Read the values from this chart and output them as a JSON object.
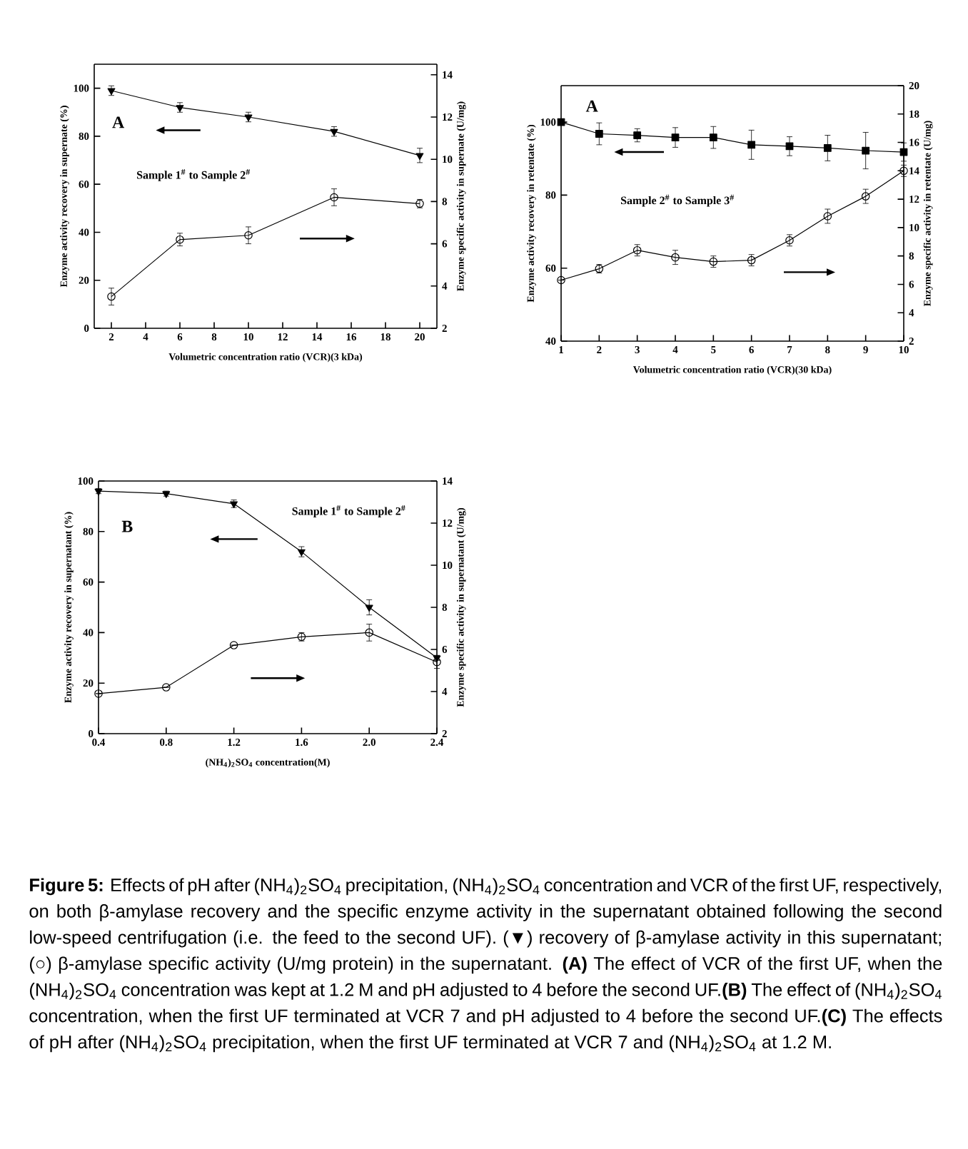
{
  "chart_data": [
    {
      "type": "line",
      "xlabel": "Volumetric concentration ratio (VCR)(3 kDa)",
      "ylabel": "Enzyme activity recovery in supernate (%)",
      "y2label": "Enzyme specific activity in supernate (U/mg)",
      "x": [
        2,
        6,
        10,
        15,
        20
      ],
      "series": [
        {
          "color": "#000000",
          "marker": "triangle",
          "values": [
            99,
            92,
            88,
            82,
            72
          ],
          "errors": [
            2,
            2,
            2,
            2,
            3
          ]
        },
        {
          "color": "#000000",
          "marker": "circle",
          "axis": "y2",
          "values": [
            3.5,
            6.2,
            6.4,
            8.2,
            7.9
          ],
          "errors": [
            0.4,
            0.3,
            0.4,
            0.4,
            0.2
          ]
        }
      ],
      "xlim": [
        1,
        21
      ],
      "xticks": [
        2,
        4,
        6,
        8,
        10,
        12,
        14,
        16,
        18,
        20
      ],
      "ylim": [
        0,
        110
      ],
      "yticks": [
        0,
        20,
        40,
        60,
        80,
        100
      ],
      "y2lim": [
        2,
        14.5
      ],
      "y2ticks": [
        2,
        4,
        6,
        8,
        10,
        12,
        14
      ],
      "annotations": [
        "A",
        "Sample 1$^{#}$ to Sample 2$^{#}$"
      ]
    },
    {
      "type": "line",
      "xlabel": "Volumetric concentration ratio (VCR)(30 kDa)",
      "ylabel": "Enzyme activity recovery in retentate (%)",
      "y2label": "Enzyme specific activity in retentate (U/mg)",
      "x": [
        1,
        2,
        3,
        4,
        5,
        6,
        7,
        8,
        9,
        10
      ],
      "series": [
        {
          "color": "#000000",
          "marker": "square",
          "values": [
            100,
            96.8,
            96.4,
            95.8,
            95.8,
            93.8,
            93.4,
            92.9,
            92.2,
            91.8
          ],
          "errors": [
            null,
            3,
            1.8,
            2.7,
            3,
            4,
            2.6,
            3.5,
            5,
            2.5
          ]
        },
        {
          "color": "#000000",
          "marker": "circle",
          "axis": "y2",
          "values": [
            6.3,
            7.1,
            8.4,
            7.9,
            7.6,
            7.7,
            9.1,
            10.8,
            12.2,
            14.0
          ],
          "errors": [
            null,
            0.3,
            0.4,
            0.5,
            0.4,
            0.4,
            0.4,
            0.5,
            0.5,
            0.4
          ]
        }
      ],
      "xlim": [
        1,
        10
      ],
      "xticks": [
        1,
        2,
        3,
        4,
        5,
        6,
        7,
        8,
        9,
        10
      ],
      "ylim": [
        40,
        110
      ],
      "yticks": [
        40,
        60,
        80,
        100
      ],
      "y2lim": [
        2,
        20
      ],
      "y2ticks": [
        2,
        4,
        6,
        8,
        10,
        12,
        14,
        16,
        18,
        20
      ],
      "annotations": [
        "A",
        "Sample 2$^{#}$ to Sample 3$^{#}$"
      ]
    },
    {
      "type": "line",
      "xlabel": "(NH$_{4}$)$_{2}$SO$_{4}$ concentration(M)",
      "ylabel": "Enzyme activity recovery in supernatant (%)",
      "y2label": "Enzyme specific activity in supernatant (U/mg)",
      "x": [
        0.4,
        0.8,
        1.2,
        1.6,
        2.0,
        2.4
      ],
      "series": [
        {
          "color": "#000000",
          "marker": "triangle",
          "values": [
            96,
            95,
            91,
            72,
            50,
            30
          ],
          "errors": [
            1,
            1,
            1.5,
            2,
            3,
            1
          ]
        },
        {
          "color": "#000000",
          "marker": "circle",
          "axis": "y2",
          "values": [
            3.9,
            4.2,
            6.2,
            6.6,
            6.8,
            5.4
          ],
          "errors": [
            null,
            null,
            null,
            0.2,
            0.4,
            0.3
          ]
        }
      ],
      "xlim": [
        0.4,
        2.4
      ],
      "xticks": [
        0.4,
        0.8,
        1.2,
        1.6,
        {
          "value": 2.0,
          "label": "2.0"
        },
        2.4
      ],
      "ylim": [
        0,
        100
      ],
      "yticks": [
        0,
        20,
        40,
        60,
        80,
        100
      ],
      "y2lim": [
        2,
        14
      ],
      "y2ticks": [
        2,
        4,
        6,
        8,
        10,
        12,
        14
      ],
      "annotations": [
        "B",
        "Sample 1$^{#}$ to Sample 2$^{#}$",
        "**Figure 5:** Effects of pH after (NH$_{4}$)$_{2}$SO$_{4}$ precipitation, (NH$_{4}$)$_{2}$SO$_{4}$ concentration and VCR of the first UF, respectively, on both β-amylase recovery and the specific enzyme activity in the supernatant obtained following the second low-speed centrifugation (i.e. the feed to the second UF). (▼) recovery of β-amylase activity in this supernatant; (○) β-amylase specific activity (U/mg protein) in the supernatant. **(A)** The effect of VCR of the first UF, when the (NH$_{4}$)$_{2}$SO$_{4}$ concentration was kept at 1.2 M and pH adjusted to 4 before the second UF.**(B)** The effect of (NH$_{4}$)$_{2}$SO$_{4}$ concentration, when the first UF terminated at VCR 7 and pH adjusted to 4 before the second UF.**(C)** The effects of pH after (NH$_{4}$)$_{2}$SO$_{4}$ precipitation, when the first UF terminated at VCR 7 and (NH$_{4}$)$_{2}$SO$_{4}$ at 1.2 M."
      ]
    }
  ]
}
